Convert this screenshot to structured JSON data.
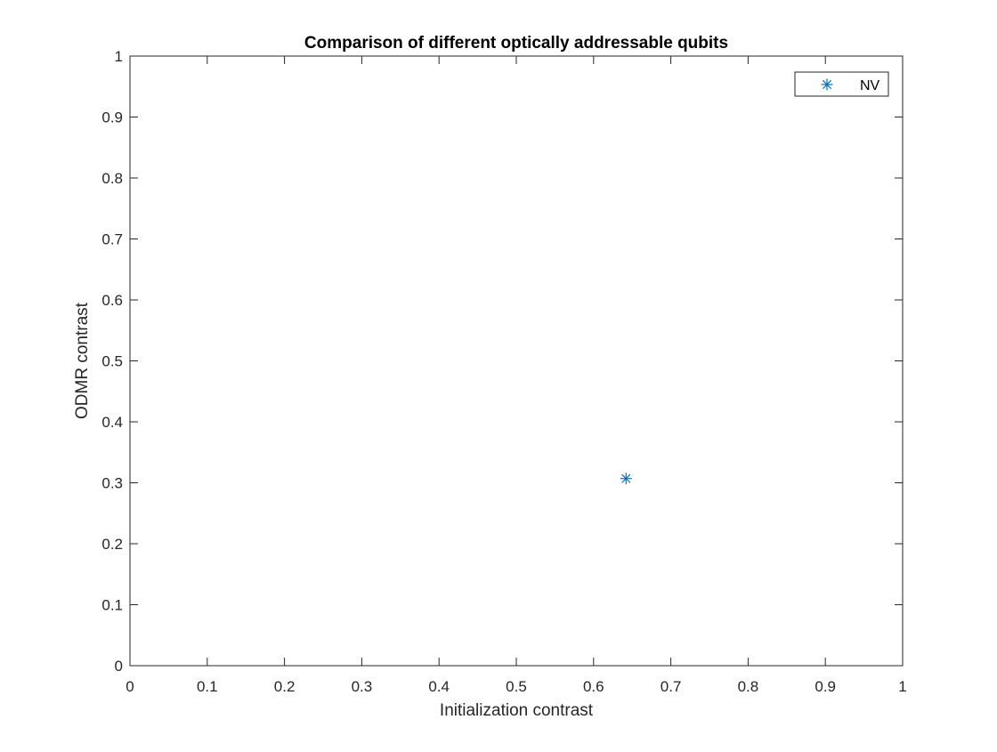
{
  "chart_data": {
    "type": "scatter",
    "title": "Comparison of different optically addressable qubits",
    "xlabel": "Initialization contrast",
    "ylabel": "ODMR contrast",
    "xlim": [
      0,
      1
    ],
    "ylim": [
      0,
      1
    ],
    "xticks": [
      "0",
      "0.1",
      "0.2",
      "0.3",
      "0.4",
      "0.5",
      "0.6",
      "0.7",
      "0.8",
      "0.9",
      "1"
    ],
    "yticks": [
      "0",
      "0.1",
      "0.2",
      "0.3",
      "0.4",
      "0.5",
      "0.6",
      "0.7",
      "0.8",
      "0.9",
      "1"
    ],
    "grid": false,
    "legend_position": "top-right",
    "series": [
      {
        "name": "NV",
        "marker": "asterisk",
        "color": "#0072BD",
        "points": [
          {
            "x": 0.642,
            "y": 0.307
          }
        ]
      }
    ]
  }
}
